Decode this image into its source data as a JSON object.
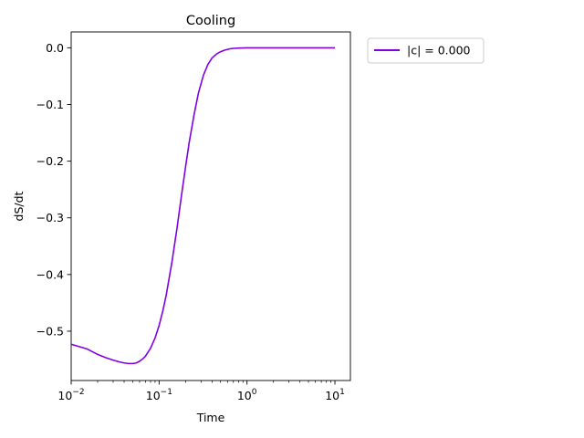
{
  "chart_data": {
    "type": "line",
    "title": "Cooling",
    "xlabel": "Time",
    "ylabel": "dS/dt",
    "xscale": "log",
    "xlim": [
      0.01,
      15
    ],
    "ylim": [
      -0.587,
      0.028
    ],
    "x_ticks": [
      {
        "value": 0.01,
        "base": "10",
        "exp": "−2"
      },
      {
        "value": 0.1,
        "base": "10",
        "exp": "−1"
      },
      {
        "value": 1,
        "base": "10",
        "exp": "0"
      },
      {
        "value": 10,
        "base": "10",
        "exp": "1"
      }
    ],
    "y_ticks": [
      {
        "value": 0.0,
        "label": "0.0"
      },
      {
        "value": -0.1,
        "label": "−0.1"
      },
      {
        "value": -0.2,
        "label": "−0.2"
      },
      {
        "value": -0.3,
        "label": "−0.3"
      },
      {
        "value": -0.4,
        "label": "−0.4"
      },
      {
        "value": -0.5,
        "label": "−0.5"
      }
    ],
    "grid": false,
    "legend": {
      "position": "outside-top-right"
    },
    "series": [
      {
        "name": "|c| = 0.000",
        "color": "#8000e6",
        "x": [
          0.01,
          0.015,
          0.02,
          0.025,
          0.03,
          0.035,
          0.04,
          0.045,
          0.05,
          0.055,
          0.06,
          0.065,
          0.07,
          0.08,
          0.09,
          0.1,
          0.11,
          0.12,
          0.14,
          0.16,
          0.18,
          0.2,
          0.22,
          0.25,
          0.28,
          0.32,
          0.36,
          0.4,
          0.45,
          0.5,
          0.56,
          0.63,
          0.7,
          0.8,
          0.9,
          1.0,
          1.1,
          1.2,
          1.4,
          1.7,
          2,
          3,
          5,
          7,
          10
        ],
        "y": [
          -0.523,
          -0.531,
          -0.541,
          -0.547,
          -0.551,
          -0.554,
          -0.556,
          -0.557,
          -0.557,
          -0.556,
          -0.553,
          -0.549,
          -0.544,
          -0.53,
          -0.512,
          -0.49,
          -0.465,
          -0.438,
          -0.378,
          -0.318,
          -0.26,
          -0.21,
          -0.167,
          -0.118,
          -0.08,
          -0.048,
          -0.029,
          -0.018,
          -0.011,
          -0.007,
          -0.004,
          -0.002,
          -0.001,
          -0.0005,
          -0.0002,
          0.0,
          0.0,
          0.0,
          0.0,
          0.0,
          0.0,
          0.0,
          0.0,
          0.0,
          0.0
        ]
      }
    ]
  }
}
